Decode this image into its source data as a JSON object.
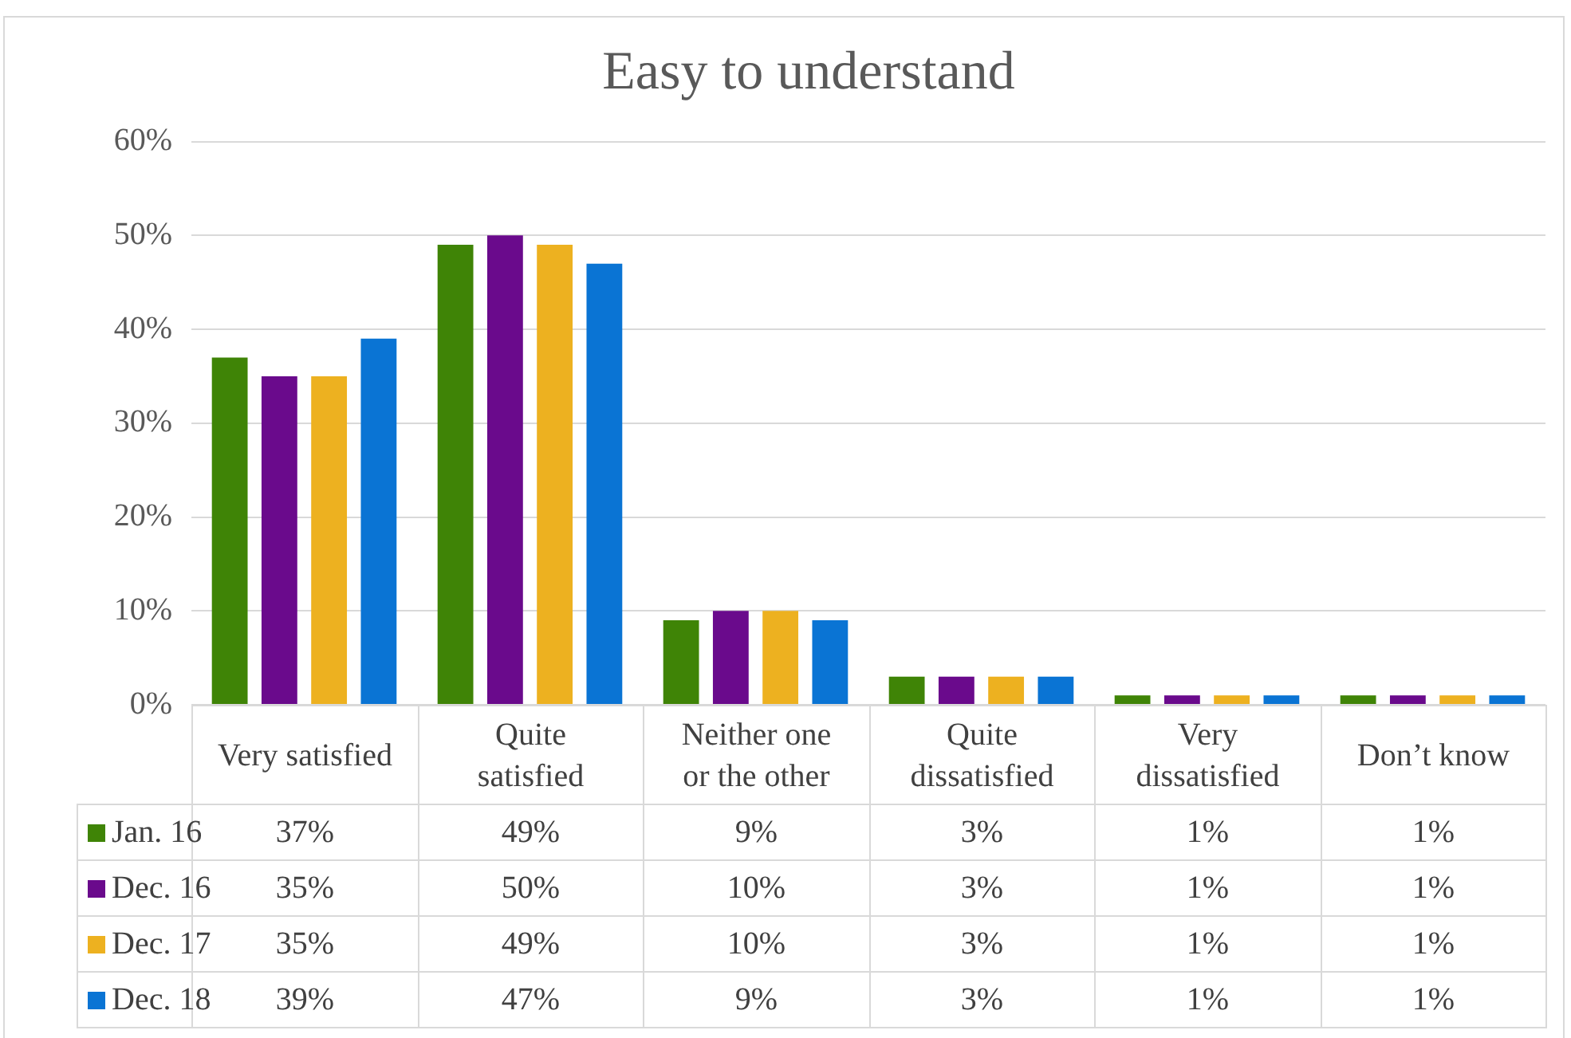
{
  "chart_data": {
    "type": "bar",
    "title": "Easy to understand",
    "categories": [
      "Very satisfied",
      "Quite satisfied",
      "Neither one or the other",
      "Quite dissatisfied",
      "Very dissatisfied",
      "Don’t know"
    ],
    "series": [
      {
        "name": "Jan. 16",
        "color": "#3f8406",
        "values": [
          37,
          49,
          9,
          3,
          1,
          1
        ],
        "value_labels": [
          "37%",
          "49%",
          "9%",
          "3%",
          "1%",
          "1%"
        ]
      },
      {
        "name": "Dec. 16",
        "color": "#6a0a8c",
        "values": [
          35,
          50,
          10,
          3,
          1,
          1
        ],
        "value_labels": [
          "35%",
          "50%",
          "10%",
          "3%",
          "1%",
          "1%"
        ]
      },
      {
        "name": "Dec. 17",
        "color": "#edb120",
        "values": [
          35,
          49,
          10,
          3,
          1,
          1
        ],
        "value_labels": [
          "35%",
          "49%",
          "10%",
          "3%",
          "1%",
          "1%"
        ]
      },
      {
        "name": "Dec. 18",
        "color": "#0a74d4",
        "values": [
          39,
          47,
          9,
          3,
          1,
          1
        ],
        "value_labels": [
          "39%",
          "47%",
          "9%",
          "3%",
          "1%",
          "1%"
        ]
      }
    ],
    "ylim": [
      0,
      60
    ],
    "yticks": [
      {
        "value": 0,
        "label": "0%"
      },
      {
        "value": 10,
        "label": "10%"
      },
      {
        "value": 20,
        "label": "20%"
      },
      {
        "value": 30,
        "label": "30%"
      },
      {
        "value": 40,
        "label": "40%"
      },
      {
        "value": 50,
        "label": "50%"
      },
      {
        "value": 60,
        "label": "60%"
      }
    ],
    "grid": "y",
    "legend": "bottom"
  }
}
